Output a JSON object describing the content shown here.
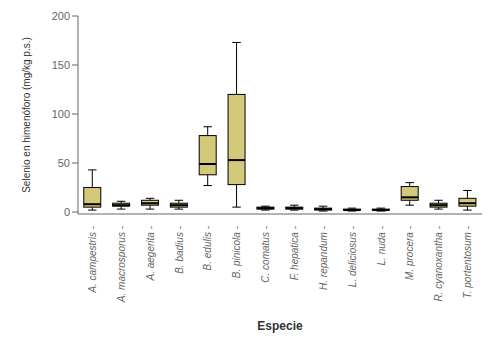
{
  "chart_data": {
    "type": "box",
    "xlabel": "Especie",
    "ylabel": "Selenio en himenóforo (mg/kg p.s.) ",
    "categories": [
      "A. campestris -",
      "A. macrosporus -",
      "A. aegerita -",
      "B. badius -",
      "B. edulis -",
      "B. pinicola -",
      "C. comatus -",
      "F. hepatica -",
      "H. repandum -",
      "L. deliciosus -",
      "L. nuda -",
      "M. procera -",
      "R. cyanoxantha -",
      "T. portentosum -"
    ],
    "boxes": [
      {
        "low": 2,
        "q1": 5,
        "median": 8,
        "q3": 25,
        "high": 43
      },
      {
        "low": 3,
        "q1": 6,
        "median": 7,
        "q3": 9,
        "high": 11
      },
      {
        "low": 3,
        "q1": 7,
        "median": 9,
        "q3": 12,
        "high": 14
      },
      {
        "low": 3,
        "q1": 5,
        "median": 7,
        "q3": 9,
        "high": 12
      },
      {
        "low": 27,
        "q1": 38,
        "median": 49,
        "q3": 78,
        "high": 87
      },
      {
        "low": 5,
        "q1": 28,
        "median": 53,
        "q3": 120,
        "high": 173
      },
      {
        "low": 2,
        "q1": 3,
        "median": 4,
        "q3": 5,
        "high": 6
      },
      {
        "low": 2,
        "q1": 3,
        "median": 4,
        "q3": 5,
        "high": 7
      },
      {
        "low": 1,
        "q1": 2,
        "median": 3,
        "q3": 4,
        "high": 6
      },
      {
        "low": 1,
        "q1": 2,
        "median": 2,
        "q3": 3,
        "high": 4
      },
      {
        "low": 1,
        "q1": 2,
        "median": 2,
        "q3": 3,
        "high": 4
      },
      {
        "low": 7,
        "q1": 12,
        "median": 15,
        "q3": 26,
        "high": 30
      },
      {
        "low": 3,
        "q1": 5,
        "median": 7,
        "q3": 9,
        "high": 12
      },
      {
        "low": 2,
        "q1": 6,
        "median": 9,
        "q3": 14,
        "high": 22
      }
    ],
    "color": "#D4C87A",
    "ylim": [
      -2,
      200
    ],
    "yticks": [
      0,
      50,
      100,
      150,
      200
    ],
    "grid": false
  }
}
